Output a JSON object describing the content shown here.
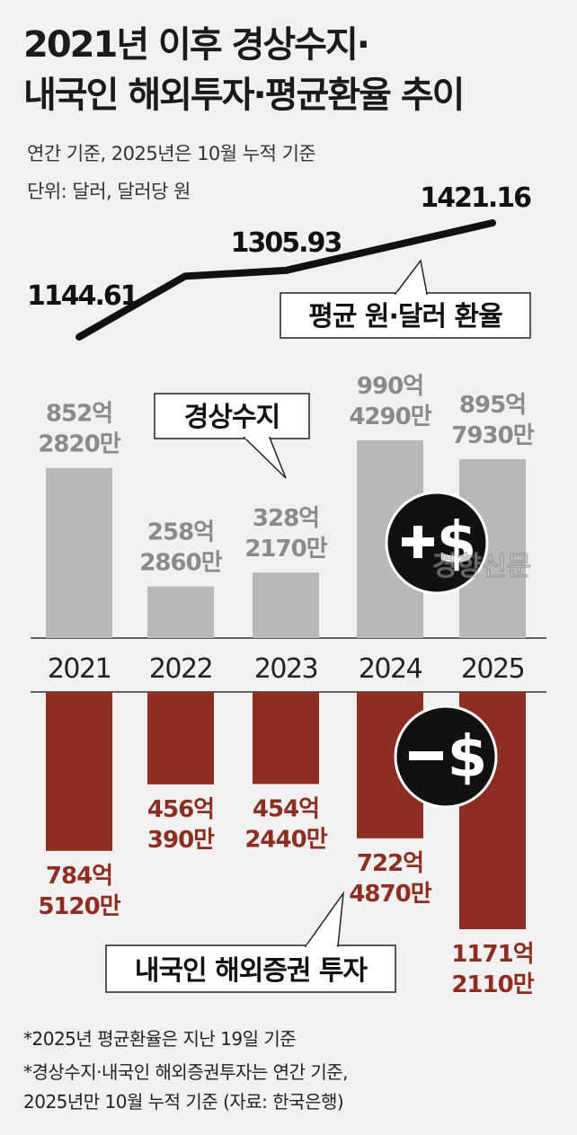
{
  "title_lines": [
    "2021년 이후 경상수지·",
    "내국인 해외투자·평균환율 추이"
  ],
  "subtitle_lines": [
    "연간 기준, 2025년은 10월 누적 기준",
    "단위: 달러, 달러당 원"
  ],
  "footnotes": [
    "*2025년 평균환율은 지난 19일 기준",
    "*경상수지·내국인 해외증권투자는 연간 기준,",
    " 2025년만 10월 누적 기준 (자료: 한국은행)"
  ],
  "watermark": "경향신문",
  "colors": {
    "current_account": "#b8b8b8",
    "overseas_investment": "#8e2d22",
    "line": "#111111",
    "background": "#f1f1f1"
  },
  "icons": {
    "plus": "plus-dollar-icon",
    "minus": "minus-dollar-icon"
  },
  "chart_data": {
    "type": "bar",
    "categories": [
      "2021",
      "2022",
      "2023",
      "2024",
      "2025"
    ],
    "series": [
      {
        "name": "경상수지",
        "values": [
          85228200000,
          25828600000,
          32821700000,
          99042900000,
          89579300000
        ],
        "labels": [
          [
            "852억",
            "2820만"
          ],
          [
            "258억",
            "2860만"
          ],
          [
            "328억",
            "2170만"
          ],
          [
            "990억",
            "4290만"
          ],
          [
            "895억",
            "7930만"
          ]
        ],
        "color": "#b8b8b8"
      },
      {
        "name": "내국인 해외증권 투자",
        "values": [
          -78451200000,
          -45603900000,
          -45424400000,
          -72248700000,
          -117121100000
        ],
        "labels": [
          [
            "784억",
            "5120만"
          ],
          [
            "456억",
            "390만"
          ],
          [
            "454억",
            "2440만"
          ],
          [
            "722억",
            "4870만"
          ],
          [
            "1171억",
            "2110만"
          ]
        ],
        "color": "#8e2d22"
      },
      {
        "name": "평균 원·달러 환율",
        "type": "line",
        "values": [
          1144.61,
          1291.95,
          1305.93,
          1363.98,
          1421.16
        ],
        "labels": [
          "1144.61",
          null,
          "1305.93",
          null,
          "1421.16"
        ]
      }
    ]
  }
}
